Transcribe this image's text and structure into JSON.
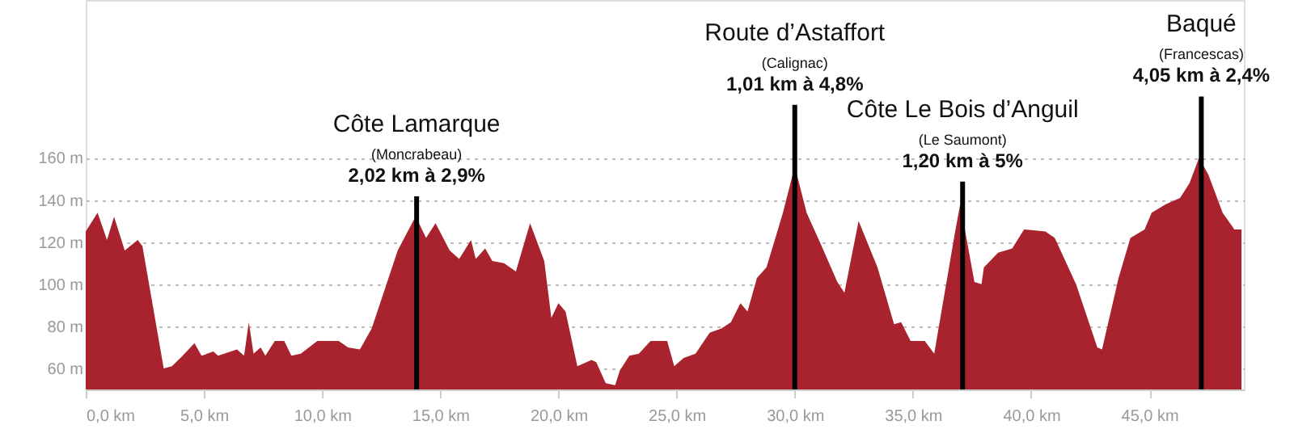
{
  "chart_data": {
    "type": "area",
    "x": [
      0,
      0.5,
      0.9,
      1.2,
      1.65,
      2.2,
      2.4,
      3.3,
      3.65,
      4.1,
      4.6,
      4.9,
      5.4,
      5.6,
      6.4,
      6.7,
      6.9,
      7.1,
      7.4,
      7.6,
      8.0,
      8.4,
      8.7,
      9.1,
      9.8,
      10.7,
      11.1,
      11.6,
      12.1,
      13.2,
      13.9,
      14.1,
      14.4,
      14.8,
      15.4,
      15.8,
      16.3,
      16.5,
      16.9,
      17.2,
      17.7,
      18.2,
      18.8,
      19.4,
      19.7,
      20.0,
      20.3,
      20.8,
      21.4,
      21.6,
      22.0,
      22.4,
      22.6,
      23.0,
      23.4,
      23.9,
      24.6,
      24.9,
      25.3,
      25.8,
      26.4,
      26.9,
      27.3,
      27.7,
      28.0,
      28.4,
      28.8,
      29.1,
      29.5,
      30.0,
      30.5,
      31.1,
      31.8,
      32.1,
      32.7,
      33.5,
      34.2,
      34.5,
      34.9,
      35.5,
      35.9,
      36.8,
      37.0,
      37.6,
      37.9,
      38.0,
      38.6,
      39.2,
      39.7,
      40.6,
      41.0,
      41.9,
      42.8,
      43.0,
      43.7,
      44.2,
      44.8,
      45.1,
      45.7,
      46.3,
      46.7,
      47.1,
      47.5,
      47.9,
      48.1,
      48.6,
      48.9
    ],
    "series": [
      {
        "color": "#a8232e",
        "values": [
          125,
          134,
          121,
          132,
          116,
          121,
          118,
          60,
          61,
          66,
          72,
          66,
          68,
          66,
          69,
          66,
          82,
          67,
          70,
          66,
          73,
          73,
          66,
          67,
          73,
          73,
          70,
          69,
          79,
          116,
          131,
          129,
          122,
          129,
          116,
          112,
          121,
          112,
          117,
          111,
          110,
          106,
          129,
          111,
          84,
          91,
          87,
          61,
          64,
          63,
          53,
          52,
          59,
          66,
          67,
          73,
          73,
          61,
          65,
          67,
          77,
          79,
          82,
          91,
          87,
          103,
          108,
          119,
          134,
          156,
          134,
          119,
          101,
          96,
          130,
          108,
          81,
          82,
          73,
          73,
          67,
          126,
          138,
          101,
          100,
          108,
          115,
          117,
          126,
          125,
          122,
          100,
          70,
          69,
          103,
          122,
          126,
          134,
          138,
          141,
          148,
          160,
          152,
          140,
          134,
          126,
          126
        ]
      }
    ],
    "xlim": [
      0,
      49
    ],
    "xticks": [
      {
        "value": 0,
        "label": "0,0 km"
      },
      {
        "value": 5,
        "label": "5,0 km"
      },
      {
        "value": 10,
        "label": "10,0 km"
      },
      {
        "value": 15,
        "label": "15,0 km"
      },
      {
        "value": 20,
        "label": "20,0 km"
      },
      {
        "value": 25,
        "label": "25,0 km"
      },
      {
        "value": 30,
        "label": "30,0 km"
      },
      {
        "value": 35,
        "label": "35,0 km"
      },
      {
        "value": 40,
        "label": "40,0 km"
      },
      {
        "value": 45,
        "label": "45,0 km"
      }
    ],
    "ylim": [
      50,
      235
    ],
    "yticks": [
      {
        "value": 60,
        "label": "60 m"
      },
      {
        "value": 80,
        "label": "80 m"
      },
      {
        "value": 100,
        "label": "100 m"
      },
      {
        "value": 120,
        "label": "120 m"
      },
      {
        "value": 140,
        "label": "140 m"
      },
      {
        "value": 160,
        "label": "160 m"
      }
    ],
    "grid": "y",
    "ref_lines": [
      {
        "axis": "x",
        "value": 14.0,
        "label": "Côte Lamarque",
        "color": "#000000"
      },
      {
        "axis": "x",
        "value": 30.0,
        "label": "Route d’Astaffort",
        "color": "#000000"
      },
      {
        "axis": "x",
        "value": 37.1,
        "label": "Côte Le Bois d’Anguil",
        "color": "#000000"
      },
      {
        "axis": "x",
        "value": 47.2,
        "label": "Baqué",
        "color": "#000000"
      }
    ],
    "annotations": [
      "(Moncrabeau)",
      "2,02 km à 2,9%",
      "(Calignac)",
      "1,01 km à 4,8%",
      "(Le Saumont)",
      "1,20 km à 5%",
      "(Francescas)",
      "4,05 km à 2,4%"
    ]
  }
}
